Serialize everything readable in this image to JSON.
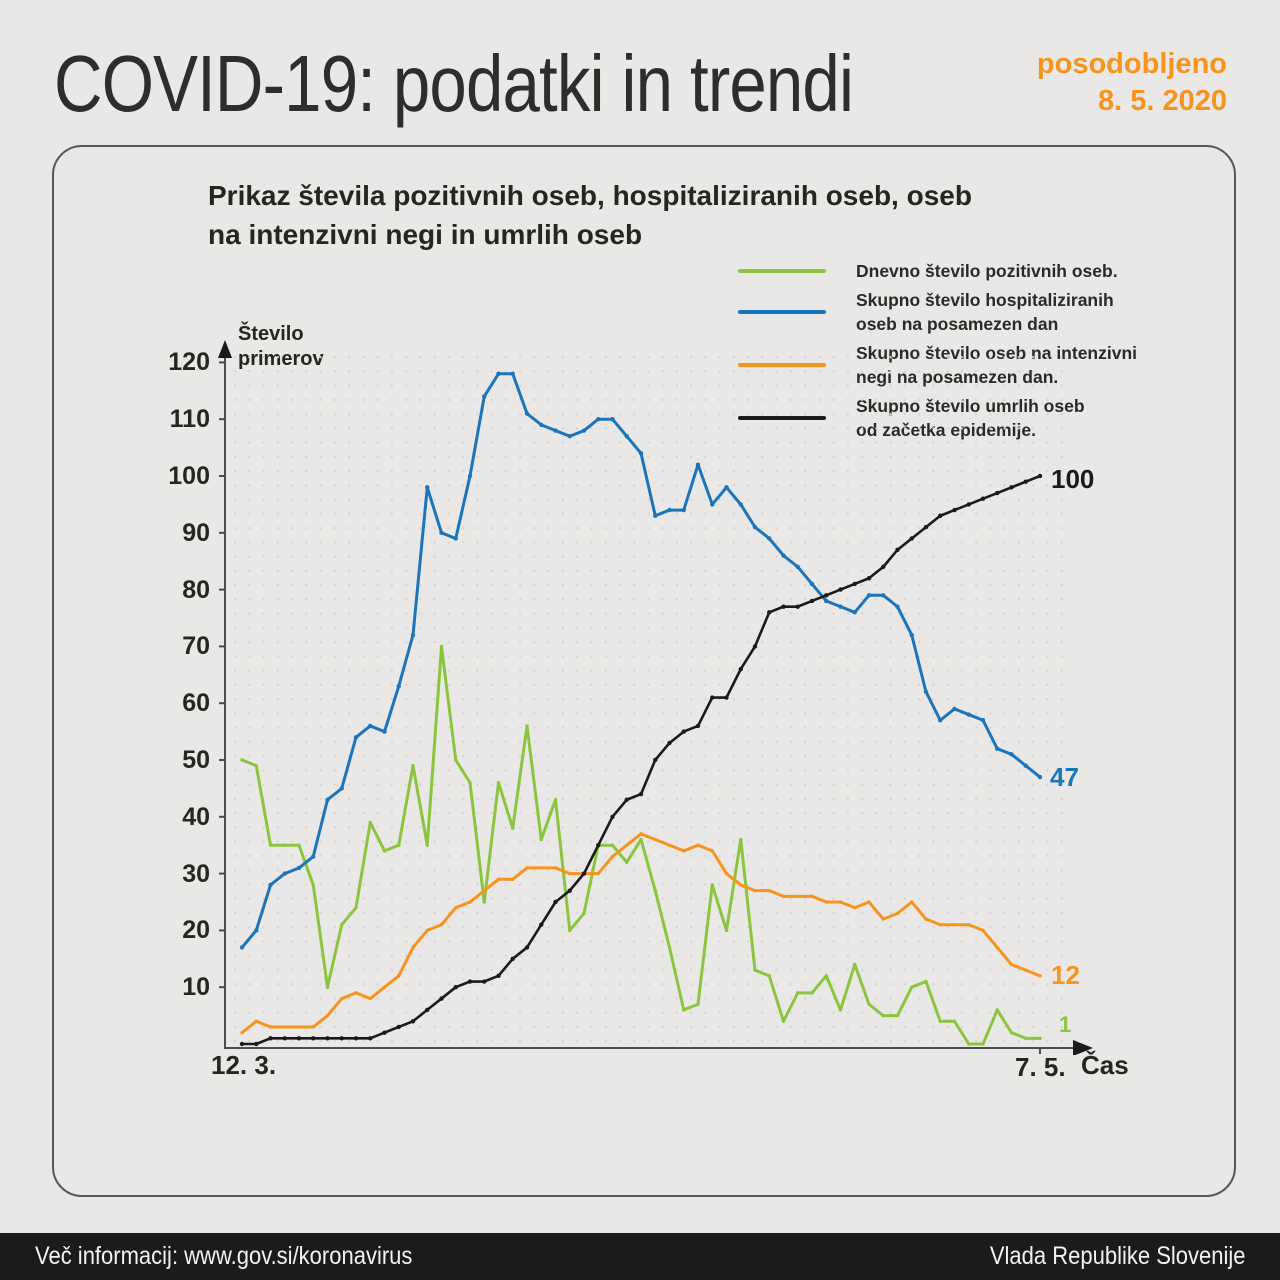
{
  "header": {
    "title": "COVID-19: podatki in trendi",
    "updated_label": "posodobljeno",
    "updated_date": "8. 5. 2020",
    "accent_color": "#f6941d"
  },
  "panel": {
    "title": "Prikaz števila pozitivnih oseb, hospitaliziranih oseb, oseb\nna intenzivni negi in umrlih oseb"
  },
  "axes": {
    "y_axis_title": "Število\nprimerov",
    "y_ticks": [
      "120",
      "110",
      "100",
      "90",
      "80",
      "70",
      "60",
      "50",
      "40",
      "30",
      "20",
      "10"
    ],
    "x_start_label": "12. 3.",
    "x_end_label": "7. 5.",
    "x_axis_title": "Čas",
    "axis_color": "#4d4d4d"
  },
  "footer": {
    "left": "Več informacij: www.gov.si/koronavirus",
    "right": "Vlada Republike Slovenije"
  },
  "chart_data": {
    "type": "line",
    "title": "Prikaz števila pozitivnih oseb, hospitaliziranih oseb, oseb na intenzivni negi in umrlih oseb",
    "x_start": "12. 3. 2020",
    "x_end": "7. 5. 2020",
    "x_points": 57,
    "xlabel": "Čas",
    "ylabel": "Število primerov",
    "ylim": [
      0,
      120
    ],
    "grid": true,
    "legend_position": "top-right",
    "series": [
      {
        "name": "Dnevno število pozitivnih oseb.",
        "legend_label": "Dnevno število pozitivnih oseb.",
        "color": "#8bc53f",
        "end_label": "1",
        "values": [
          50,
          49,
          35,
          35,
          35,
          28,
          10,
          21,
          24,
          39,
          34,
          35,
          49,
          35,
          70,
          50,
          46,
          25,
          46,
          38,
          56,
          36,
          43,
          20,
          23,
          35,
          35,
          32,
          36,
          27,
          17,
          6,
          7,
          28,
          20,
          36,
          13,
          12,
          4,
          9,
          9,
          12,
          6,
          14,
          7,
          5,
          5,
          10,
          11,
          4,
          4,
          0,
          0,
          6,
          2,
          1,
          1
        ]
      },
      {
        "name": "Skupno število hospitaliziranih oseb na posamezen dan",
        "legend_label": "Skupno število hospitaliziranih\noseb na posamezen dan",
        "color": "#1b75bb",
        "end_label": "47",
        "values": [
          17,
          20,
          28,
          30,
          31,
          33,
          43,
          45,
          54,
          56,
          55,
          63,
          72,
          98,
          90,
          89,
          100,
          114,
          118,
          118,
          111,
          109,
          108,
          107,
          108,
          110,
          110,
          107,
          104,
          93,
          94,
          94,
          102,
          95,
          98,
          95,
          91,
          89,
          86,
          84,
          81,
          78,
          77,
          76,
          79,
          79,
          77,
          72,
          62,
          57,
          59,
          58,
          57,
          52,
          51,
          49,
          47
        ]
      },
      {
        "name": "Skupno število oseb na intenzivni negi na posamezen dan.",
        "legend_label": "Skupno število oseb na intenzivni\nnegi na posamezen dan.",
        "color": "#f6941d",
        "end_label": "12",
        "values": [
          2,
          4,
          3,
          3,
          3,
          3,
          5,
          8,
          9,
          8,
          10,
          12,
          17,
          20,
          21,
          24,
          25,
          27,
          29,
          29,
          31,
          31,
          31,
          30,
          30,
          30,
          33,
          35,
          37,
          36,
          35,
          34,
          35,
          34,
          30,
          28,
          27,
          27,
          26,
          26,
          26,
          25,
          25,
          24,
          25,
          22,
          23,
          25,
          22,
          21,
          21,
          21,
          20,
          17,
          14,
          13,
          12
        ]
      },
      {
        "name": "Skupno število umrlih oseb od začetka epidemije.",
        "legend_label": "Skupno število umrlih oseb\nod začetka epidemije.",
        "color": "#1a1a1a",
        "end_label": "100",
        "values": [
          0,
          0,
          1,
          1,
          1,
          1,
          1,
          1,
          1,
          1,
          2,
          3,
          4,
          6,
          8,
          10,
          11,
          11,
          12,
          15,
          17,
          21,
          25,
          27,
          30,
          35,
          40,
          43,
          44,
          50,
          53,
          55,
          56,
          61,
          61,
          66,
          70,
          76,
          77,
          77,
          78,
          79,
          80,
          81,
          82,
          84,
          87,
          89,
          91,
          93,
          94,
          95,
          96,
          97,
          98,
          99,
          100
        ]
      }
    ]
  }
}
